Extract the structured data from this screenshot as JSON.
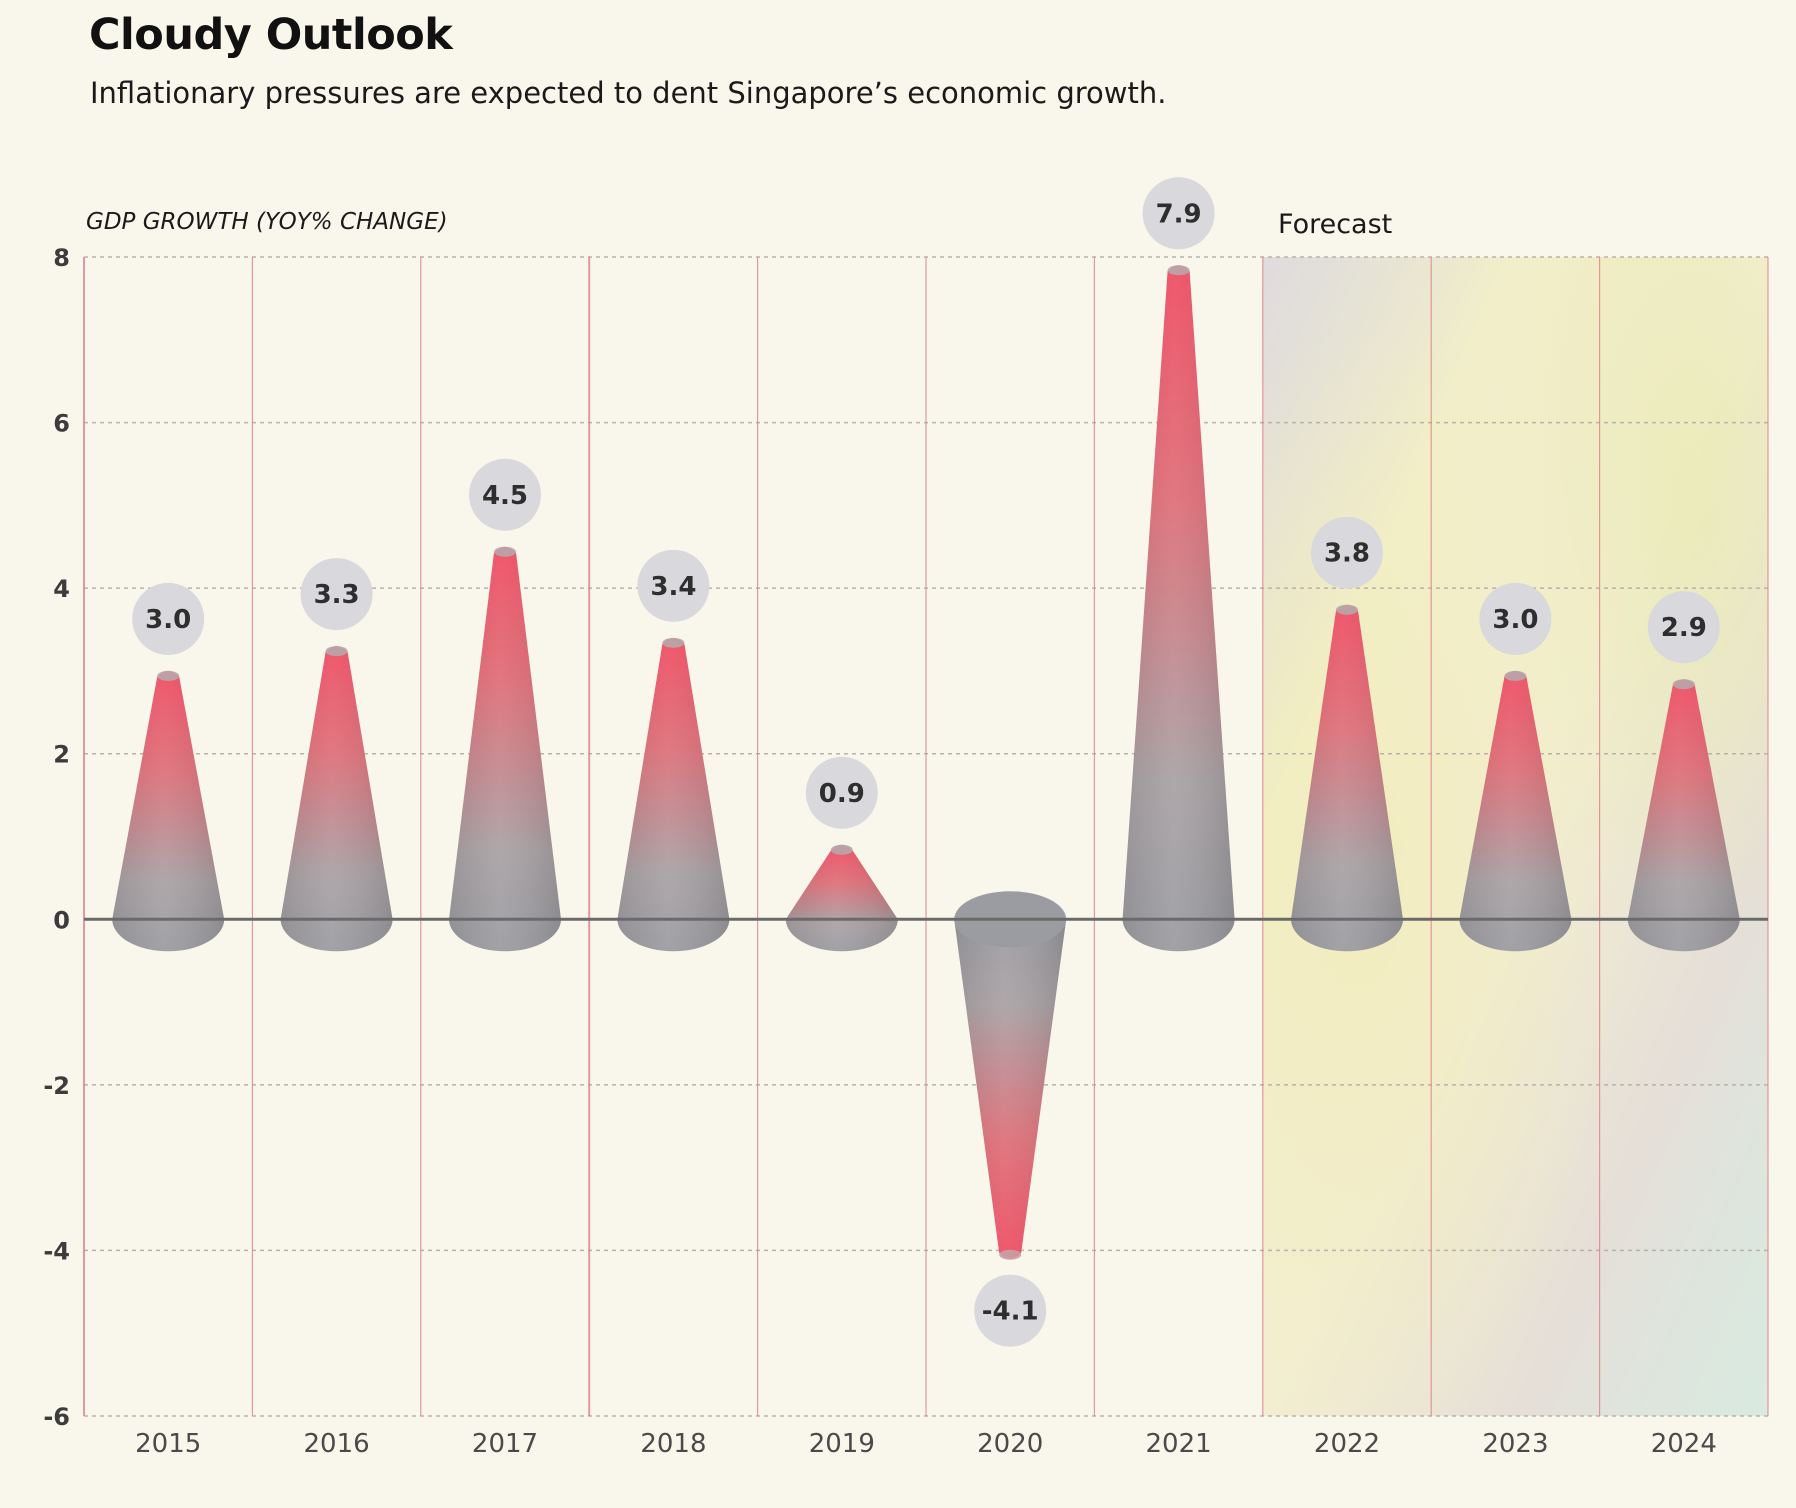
{
  "chart_data": {
    "type": "bar",
    "title": "Cloudy Outlook",
    "subtitle": "Inflationary pressures are expected to dent Singapore’s economic growth.",
    "ylabel": "GDP GROWTH (YOY% CHANGE)",
    "xlabel": "",
    "ylim": [
      -6,
      8
    ],
    "yticks": [
      "8",
      "6",
      "4",
      "2",
      "0",
      "-2",
      "-4",
      "-6"
    ],
    "categories": [
      "2015",
      "2016",
      "2017",
      "2018",
      "2019",
      "2020",
      "2021",
      "2022",
      "2023",
      "2024"
    ],
    "values": [
      3.0,
      3.3,
      4.5,
      3.4,
      0.9,
      -4.1,
      7.9,
      3.8,
      3.0,
      2.9
    ],
    "value_labels": [
      "3.0",
      "3.3",
      "4.5",
      "3.4",
      "0.9",
      "-4.1",
      "7.9",
      "3.8",
      "3.0",
      "2.9"
    ],
    "forecast_label": "Forecast",
    "forecast_categories": [
      "2022",
      "2023",
      "2024"
    ],
    "grid": true,
    "colors": {
      "peak": "#ec5466",
      "base": "#9b9ca1",
      "label_bubble": "#d9d9dd",
      "vertical_lines": "#e0818a",
      "gridline": "#b8b3aa",
      "zero_line": "#6a6a6a",
      "background": "#f9f6ec"
    }
  }
}
